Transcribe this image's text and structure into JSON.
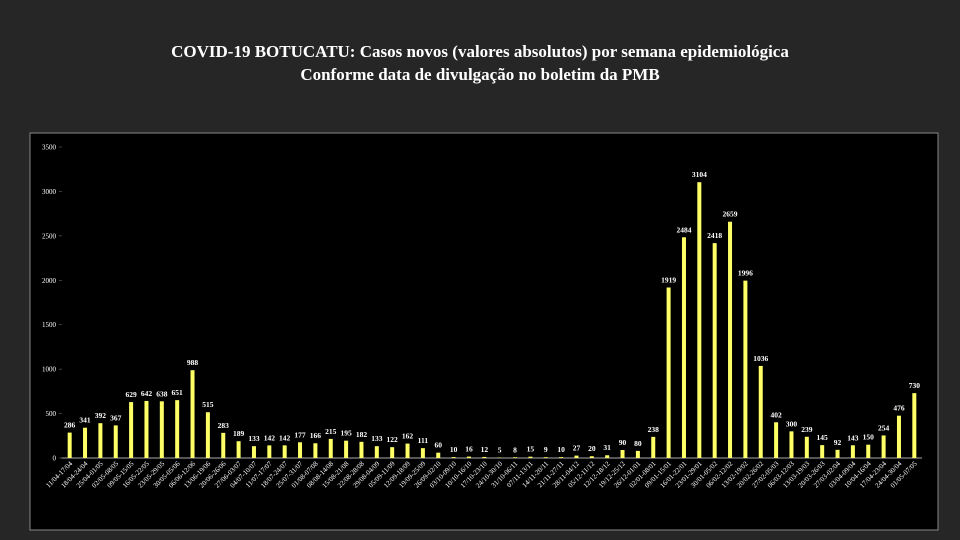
{
  "chart_data": {
    "type": "bar",
    "title": "COVID-19 BOTUCATU: Casos novos (valores absolutos) por semana epidemiológica",
    "subtitle": "Conforme data de divulgação no boletim da PMB",
    "categories": [
      "11/04-17/04",
      "18/04-24/04",
      "25/04-01/05",
      "02/05-08/05",
      "09/05-15/05",
      "16/05-22/05",
      "23/05-29/05",
      "30/05-05/06",
      "06/06-12/06",
      "13/06-19/06",
      "20/06-26/06",
      "27/06-03/07",
      "04/07-10/07",
      "11/07-17/07",
      "18/07-24/07",
      "25/07-31/07",
      "01/08-07/08",
      "08/08-14/08",
      "15/08-21/08",
      "22/08-28/08",
      "29/08-04/09",
      "05/09-11/09",
      "12/09-18/09",
      "19/09-25/09",
      "26/09-02/10",
      "03/10-09/10",
      "10/10-16/10",
      "17/10-23/10",
      "24/10-30/10",
      "31/10-06/11",
      "07/11-13/11",
      "14/11-20/11",
      "21/11-27/11",
      "28/11-04/12",
      "05/12-11/12",
      "12/12-18/12",
      "19/12-25/12",
      "26/12-01/01",
      "02/01-08/01",
      "09/01-15/01",
      "16/01-22/01",
      "23/01-29/01",
      "30/01-05/02",
      "06/02-12/02",
      "13/02-19/02",
      "20/02-26/02",
      "27/02-05/03",
      "06/03-12/03",
      "13/03-19/03",
      "20/03-26/03",
      "27/03-02/04",
      "03/04-09/04",
      "10/04-16/04",
      "17/04-23/04",
      "24/04-30/04",
      "01/05-07/05"
    ],
    "values": [
      286,
      341,
      392,
      367,
      629,
      642,
      638,
      651,
      988,
      515,
      283,
      189,
      133,
      142,
      142,
      177,
      166,
      215,
      195,
      182,
      133,
      122,
      162,
      111,
      60,
      10,
      16,
      12,
      5,
      8,
      15,
      9,
      10,
      27,
      20,
      31,
      90,
      80,
      238,
      1919,
      2484,
      3104,
      2418,
      2659,
      1996,
      1036,
      402,
      300,
      239,
      145,
      92,
      143,
      150,
      254,
      476,
      730
    ],
    "color": "#ffff66",
    "ylim": [
      0,
      3500
    ],
    "yticks": [
      0,
      500,
      1000,
      1500,
      2000,
      2500,
      3000,
      3500
    ],
    "grid": false
  }
}
